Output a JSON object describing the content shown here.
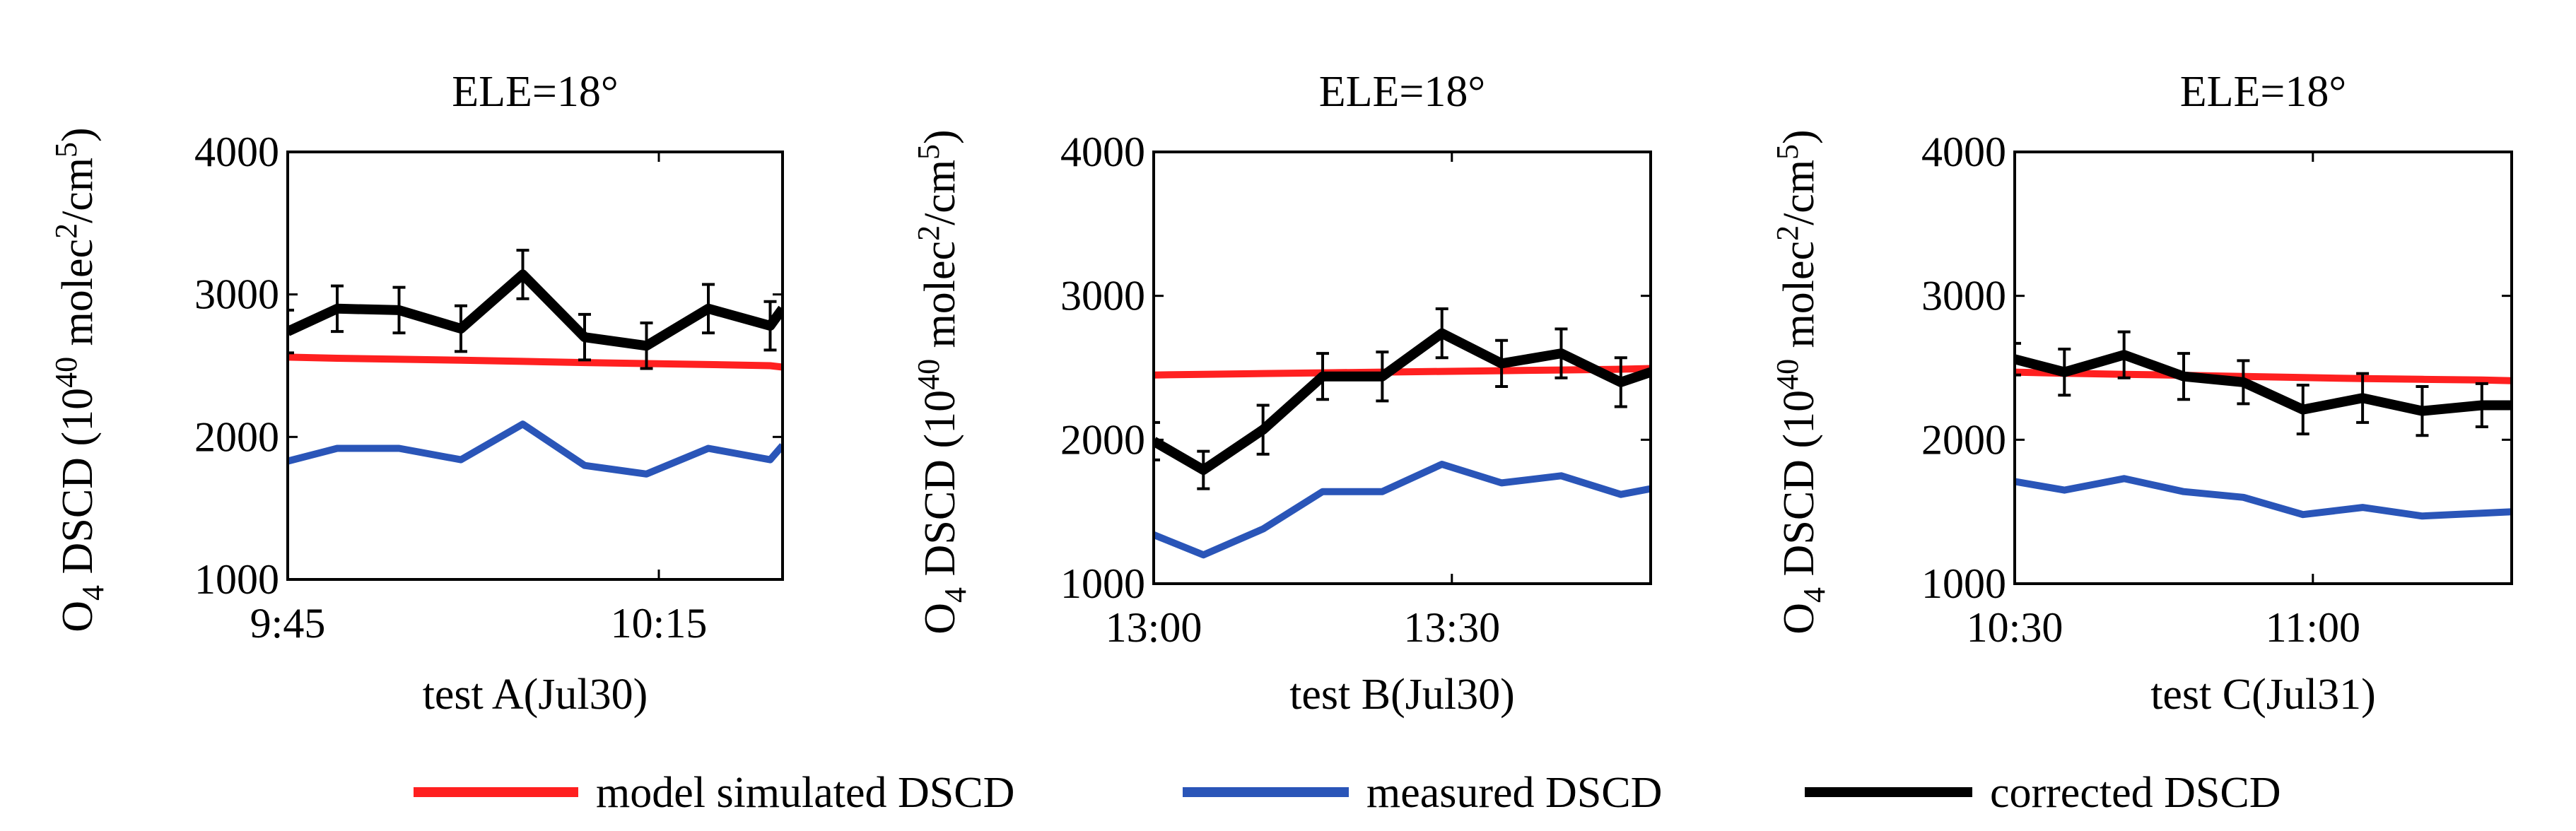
{
  "colors": {
    "model": "#ff2020",
    "measured": "#2a55b8",
    "corrected": "#000000"
  },
  "legend": [
    {
      "label": "model simulated DSCD",
      "series": "model"
    },
    {
      "label": "measured DSCD",
      "series": "measured"
    },
    {
      "label": "corrected DSCD",
      "series": "corrected"
    }
  ],
  "ylabel": {
    "base": "O",
    "base_sub": "4",
    "mid": " DSCD (10",
    "exp": "40",
    "unit": " molec",
    "unit_sup": "2",
    "unit2": "/cm",
    "unit2_sup": "5",
    "close": ")"
  },
  "chart_data": [
    {
      "type": "line",
      "title": "ELE=18°",
      "xlabel": "test A(Jul30)",
      "ylabel": "O4 DSCD (10^40 molec^2/cm^5)",
      "ylim": [
        1000,
        4000
      ],
      "yticks": [
        1000,
        2000,
        3000,
        4000
      ],
      "xlim": [
        "9:45",
        "10:25"
      ],
      "xticks": [
        "9:45",
        "10:15"
      ],
      "grid": false,
      "x": [
        "9:45",
        "9:49",
        "9:54",
        "9:59",
        "10:04",
        "10:09",
        "10:14",
        "10:19",
        "10:24",
        "10:25"
      ],
      "series": [
        {
          "key": "model",
          "name": "model simulated DSCD",
          "values": [
            2560,
            2552,
            2545,
            2538,
            2530,
            2522,
            2515,
            2508,
            2500,
            2490
          ]
        },
        {
          "key": "measured",
          "name": "measured DSCD",
          "values": [
            1830,
            1920,
            1920,
            1840,
            2090,
            1800,
            1740,
            1920,
            1840,
            1940
          ]
        },
        {
          "key": "corrected",
          "name": "corrected DSCD",
          "values": [
            2740,
            2900,
            2890,
            2760,
            3140,
            2700,
            2640,
            2900,
            2780,
            2900
          ],
          "error": [
            150,
            160,
            160,
            160,
            170,
            160,
            160,
            170,
            170,
            170
          ]
        }
      ]
    },
    {
      "type": "line",
      "title": "ELE=18°",
      "xlabel": "test B(Jul30)",
      "ylabel": "O4 DSCD (10^40 molec^2/cm^5)",
      "ylim": [
        1000,
        4000
      ],
      "yticks": [
        1000,
        2000,
        3000,
        4000
      ],
      "xlim": [
        "13:00",
        "13:50"
      ],
      "xticks": [
        "13:00",
        "13:30"
      ],
      "grid": false,
      "x": [
        "13:00",
        "13:05",
        "13:11",
        "13:17",
        "13:23",
        "13:29",
        "13:35",
        "13:41",
        "13:47",
        "13:50"
      ],
      "series": [
        {
          "key": "model",
          "name": "model simulated DSCD",
          "values": [
            2450,
            2455,
            2460,
            2465,
            2470,
            2475,
            2480,
            2485,
            2490,
            2495
          ]
        },
        {
          "key": "measured",
          "name": "measured DSCD",
          "values": [
            1340,
            1200,
            1380,
            1640,
            1640,
            1830,
            1700,
            1750,
            1620,
            1660
          ]
        },
        {
          "key": "corrected",
          "name": "corrected DSCD",
          "values": [
            1990,
            1790,
            2070,
            2440,
            2440,
            2740,
            2530,
            2600,
            2400,
            2470
          ],
          "error": [
            130,
            130,
            170,
            160,
            170,
            170,
            160,
            170,
            170,
            170
          ]
        }
      ]
    },
    {
      "type": "line",
      "title": "ELE=18°",
      "xlabel": "test C(Jul31)",
      "ylabel": "O4 DSCD (10^40 molec^2/cm^5)",
      "ylim": [
        1000,
        4000
      ],
      "yticks": [
        1000,
        2000,
        3000,
        4000
      ],
      "xlim": [
        "10:30",
        "11:20"
      ],
      "xticks": [
        "10:30",
        "11:00"
      ],
      "grid": false,
      "x": [
        "10:30",
        "10:35",
        "10:41",
        "10:47",
        "10:53",
        "10:59",
        "11:05",
        "11:11",
        "11:17",
        "11:20"
      ],
      "series": [
        {
          "key": "model",
          "name": "model simulated DSCD",
          "values": [
            2470,
            2462,
            2455,
            2448,
            2440,
            2432,
            2425,
            2420,
            2415,
            2410
          ]
        },
        {
          "key": "measured",
          "name": "measured DSCD",
          "values": [
            1710,
            1650,
            1730,
            1640,
            1600,
            1480,
            1530,
            1470,
            1490,
            1500
          ]
        },
        {
          "key": "corrected",
          "name": "corrected DSCD",
          "values": [
            2560,
            2470,
            2590,
            2440,
            2400,
            2210,
            2290,
            2200,
            2240,
            2240
          ],
          "error": [
            110,
            160,
            160,
            160,
            150,
            170,
            170,
            170,
            150,
            150
          ]
        }
      ]
    }
  ]
}
